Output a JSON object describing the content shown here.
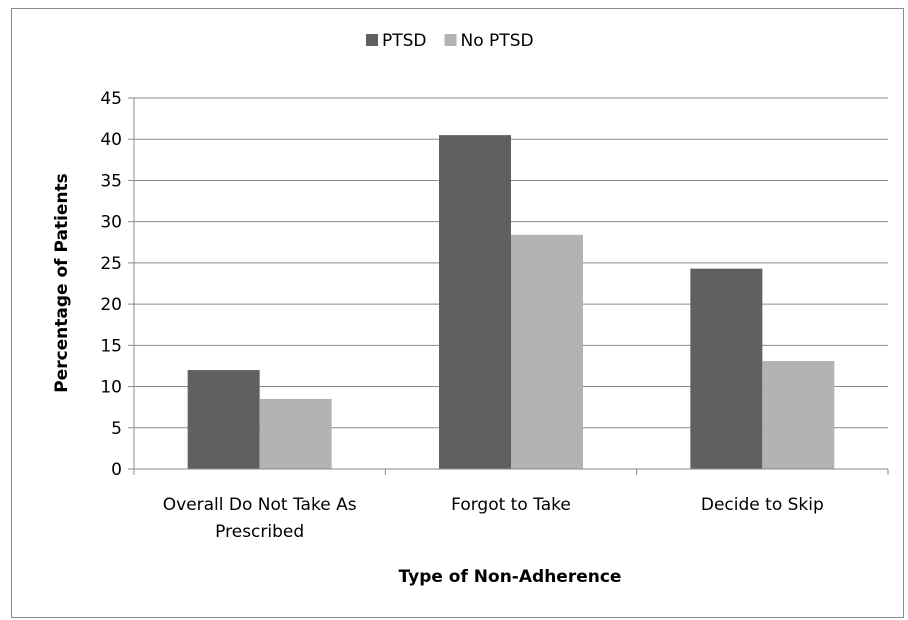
{
  "chart_data": {
    "type": "bar",
    "categories": [
      [
        "Overall Do Not Take As",
        "Prescribed"
      ],
      [
        "Forgot to Take"
      ],
      [
        "Decide to Skip"
      ]
    ],
    "series": [
      {
        "name": "PTSD",
        "color": "#606060",
        "values": [
          12,
          40.5,
          24.3
        ]
      },
      {
        "name": "No PTSD",
        "color": "#b3b3b3",
        "values": [
          8.5,
          28.4,
          13.1
        ]
      }
    ],
    "xlabel": "Type of Non-Adherence",
    "ylabel": "Percentage of Patients",
    "ylim": [
      0,
      45
    ],
    "yticks": [
      0,
      5,
      10,
      15,
      20,
      25,
      30,
      35,
      40,
      45
    ],
    "grid": true,
    "legend_position": "top-center"
  }
}
